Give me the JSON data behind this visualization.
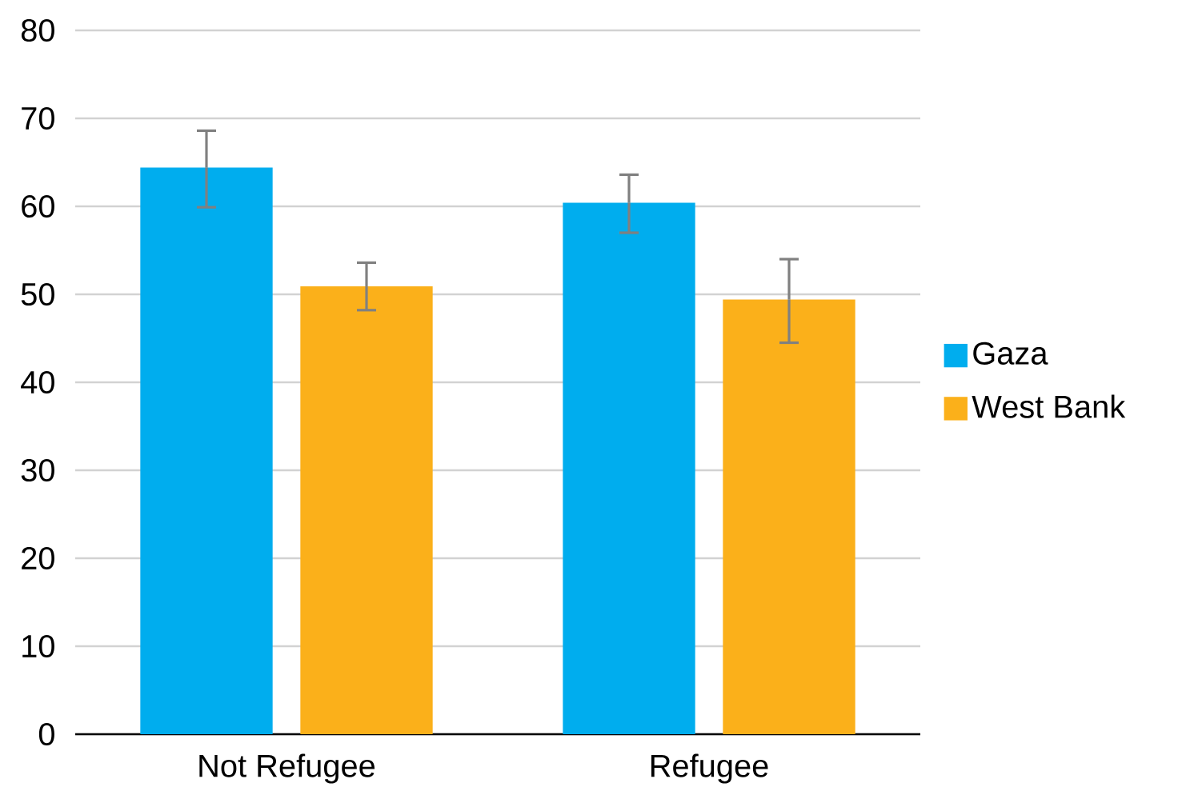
{
  "chart_data": {
    "type": "bar",
    "categories": [
      "Not Refugee",
      "Refugee"
    ],
    "series": [
      {
        "name": "Gaza",
        "color": "#00adee",
        "values": [
          64.4,
          60.4
        ],
        "errors": [
          [
            59.9,
            68.6
          ],
          [
            57.0,
            63.6
          ]
        ]
      },
      {
        "name": "West Bank",
        "color": "#fbb01a",
        "values": [
          50.9,
          49.4
        ],
        "errors": [
          [
            48.2,
            53.6
          ],
          [
            44.5,
            54.0
          ]
        ]
      }
    ],
    "ylim": [
      0,
      80
    ],
    "yticks": [
      0,
      10,
      20,
      30,
      40,
      50,
      60,
      70,
      80
    ],
    "grid": "y",
    "legend": "right"
  }
}
